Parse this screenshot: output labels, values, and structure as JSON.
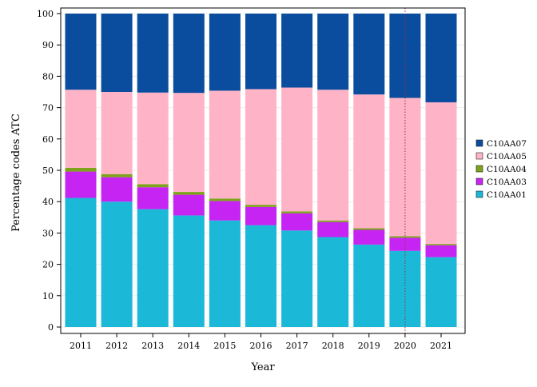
{
  "chart_data": {
    "type": "bar",
    "stacked": true,
    "title": "",
    "xlabel": "Year",
    "ylabel": "Percentage codes ATC",
    "categories": [
      "2011",
      "2012",
      "2013",
      "2014",
      "2015",
      "2016",
      "2017",
      "2018",
      "2019",
      "2020",
      "2021"
    ],
    "ylim": [
      0,
      100
    ],
    "yticks": [
      0,
      10,
      20,
      30,
      40,
      50,
      60,
      70,
      80,
      90,
      100
    ],
    "grid": true,
    "legend_position": "right",
    "reference_line": {
      "x": "2020",
      "style": "dotted",
      "color": "#9b2f4a"
    },
    "series": [
      {
        "name": "C10AA01",
        "color": "#1bb8d8",
        "values": [
          41.2,
          40.0,
          37.6,
          35.6,
          34.0,
          32.5,
          30.8,
          28.7,
          26.3,
          24.3,
          22.3
        ]
      },
      {
        "name": "C10AA03",
        "color": "#c524f2",
        "values": [
          8.4,
          7.8,
          7.0,
          6.6,
          6.2,
          5.8,
          5.5,
          4.8,
          4.7,
          4.2,
          3.8
        ]
      },
      {
        "name": "C10AA04",
        "color": "#7ea31a",
        "values": [
          1.2,
          1.0,
          1.0,
          0.9,
          0.8,
          0.7,
          0.6,
          0.5,
          0.5,
          0.5,
          0.4
        ]
      },
      {
        "name": "C10AA05",
        "color": "#ffb3c6",
        "values": [
          24.9,
          26.2,
          29.2,
          31.6,
          34.4,
          36.9,
          39.5,
          41.7,
          42.7,
          44.1,
          45.2
        ]
      },
      {
        "name": "C10AA07",
        "color": "#0a4c9e",
        "values": [
          24.3,
          25.0,
          25.2,
          25.3,
          24.6,
          24.1,
          23.6,
          24.3,
          25.8,
          26.9,
          28.3
        ]
      }
    ],
    "legend_order": [
      "C10AA07",
      "C10AA05",
      "C10AA04",
      "C10AA03",
      "C10AA01"
    ]
  }
}
